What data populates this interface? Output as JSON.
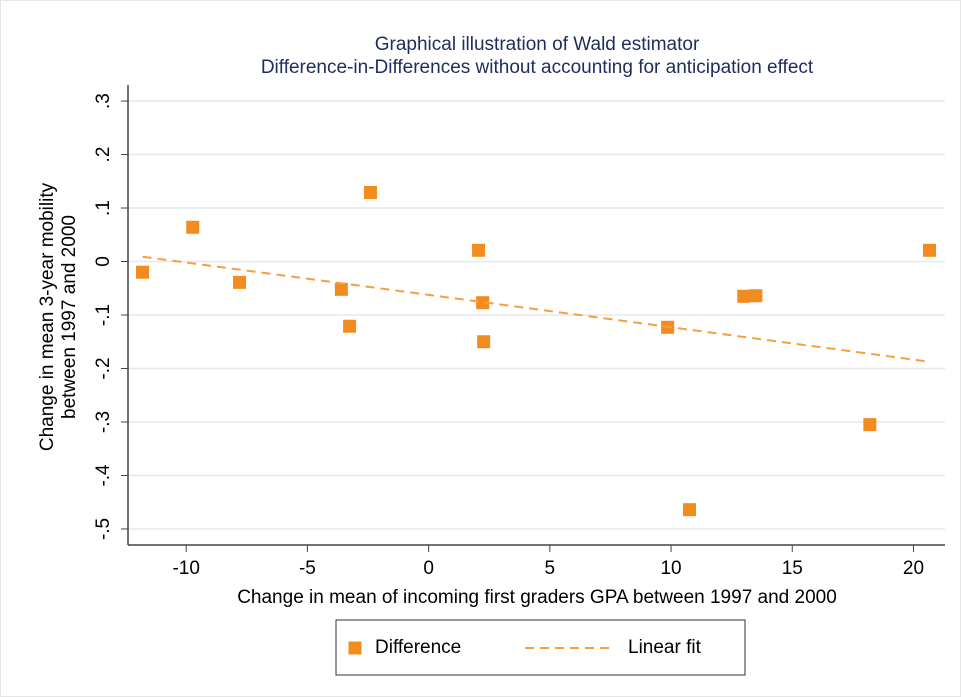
{
  "chart_data": {
    "type": "scatter",
    "title": "Graphical illustration of Wald estimator",
    "subtitle": "Difference-in-Differences without accounting for anticipation effect",
    "xlabel": "Change in mean of incoming first graders GPA between 1997 and 2000",
    "ylabel_lines": [
      "Change in mean 3-year mobility",
      "between 1997 and 2000"
    ],
    "xlim": [
      -12.4,
      21.3
    ],
    "ylim": [
      -0.53,
      0.33
    ],
    "xticks": [
      -10,
      -5,
      0,
      5,
      10,
      15,
      20
    ],
    "yticks": [
      {
        "value": 0.3,
        "label": ".3"
      },
      {
        "value": 0.2,
        "label": ".2"
      },
      {
        "value": 0.1,
        "label": ".1"
      },
      0,
      {
        "value": -0.1,
        "label": "-.1"
      },
      {
        "value": -0.2,
        "label": "-.2"
      },
      {
        "value": -0.3,
        "label": "-.3"
      },
      {
        "value": -0.4,
        "label": "-.4"
      },
      {
        "value": -0.5,
        "label": "-.5"
      }
    ],
    "grid": true,
    "legend": "bottom",
    "series": [
      {
        "name": "Difference",
        "color": "#f28c1e",
        "style": "marker",
        "x": [
          -11.8,
          -9.73,
          -7.8,
          -3.6,
          -3.26,
          -2.4,
          2.06,
          2.23,
          2.27,
          9.86,
          10.76,
          13.0,
          13.5,
          18.2,
          20.66
        ],
        "values": [
          -0.02,
          0.064,
          -0.039,
          -0.052,
          -0.121,
          0.129,
          0.021,
          -0.077,
          -0.15,
          -0.123,
          -0.464,
          -0.065,
          -0.064,
          -0.305,
          0.021
        ]
      },
      {
        "name": "Linear fit",
        "color": "#f5a040",
        "style": "dashed",
        "x": [
          -11.8,
          20.6
        ],
        "values": [
          0.009,
          -0.187
        ]
      }
    ]
  }
}
